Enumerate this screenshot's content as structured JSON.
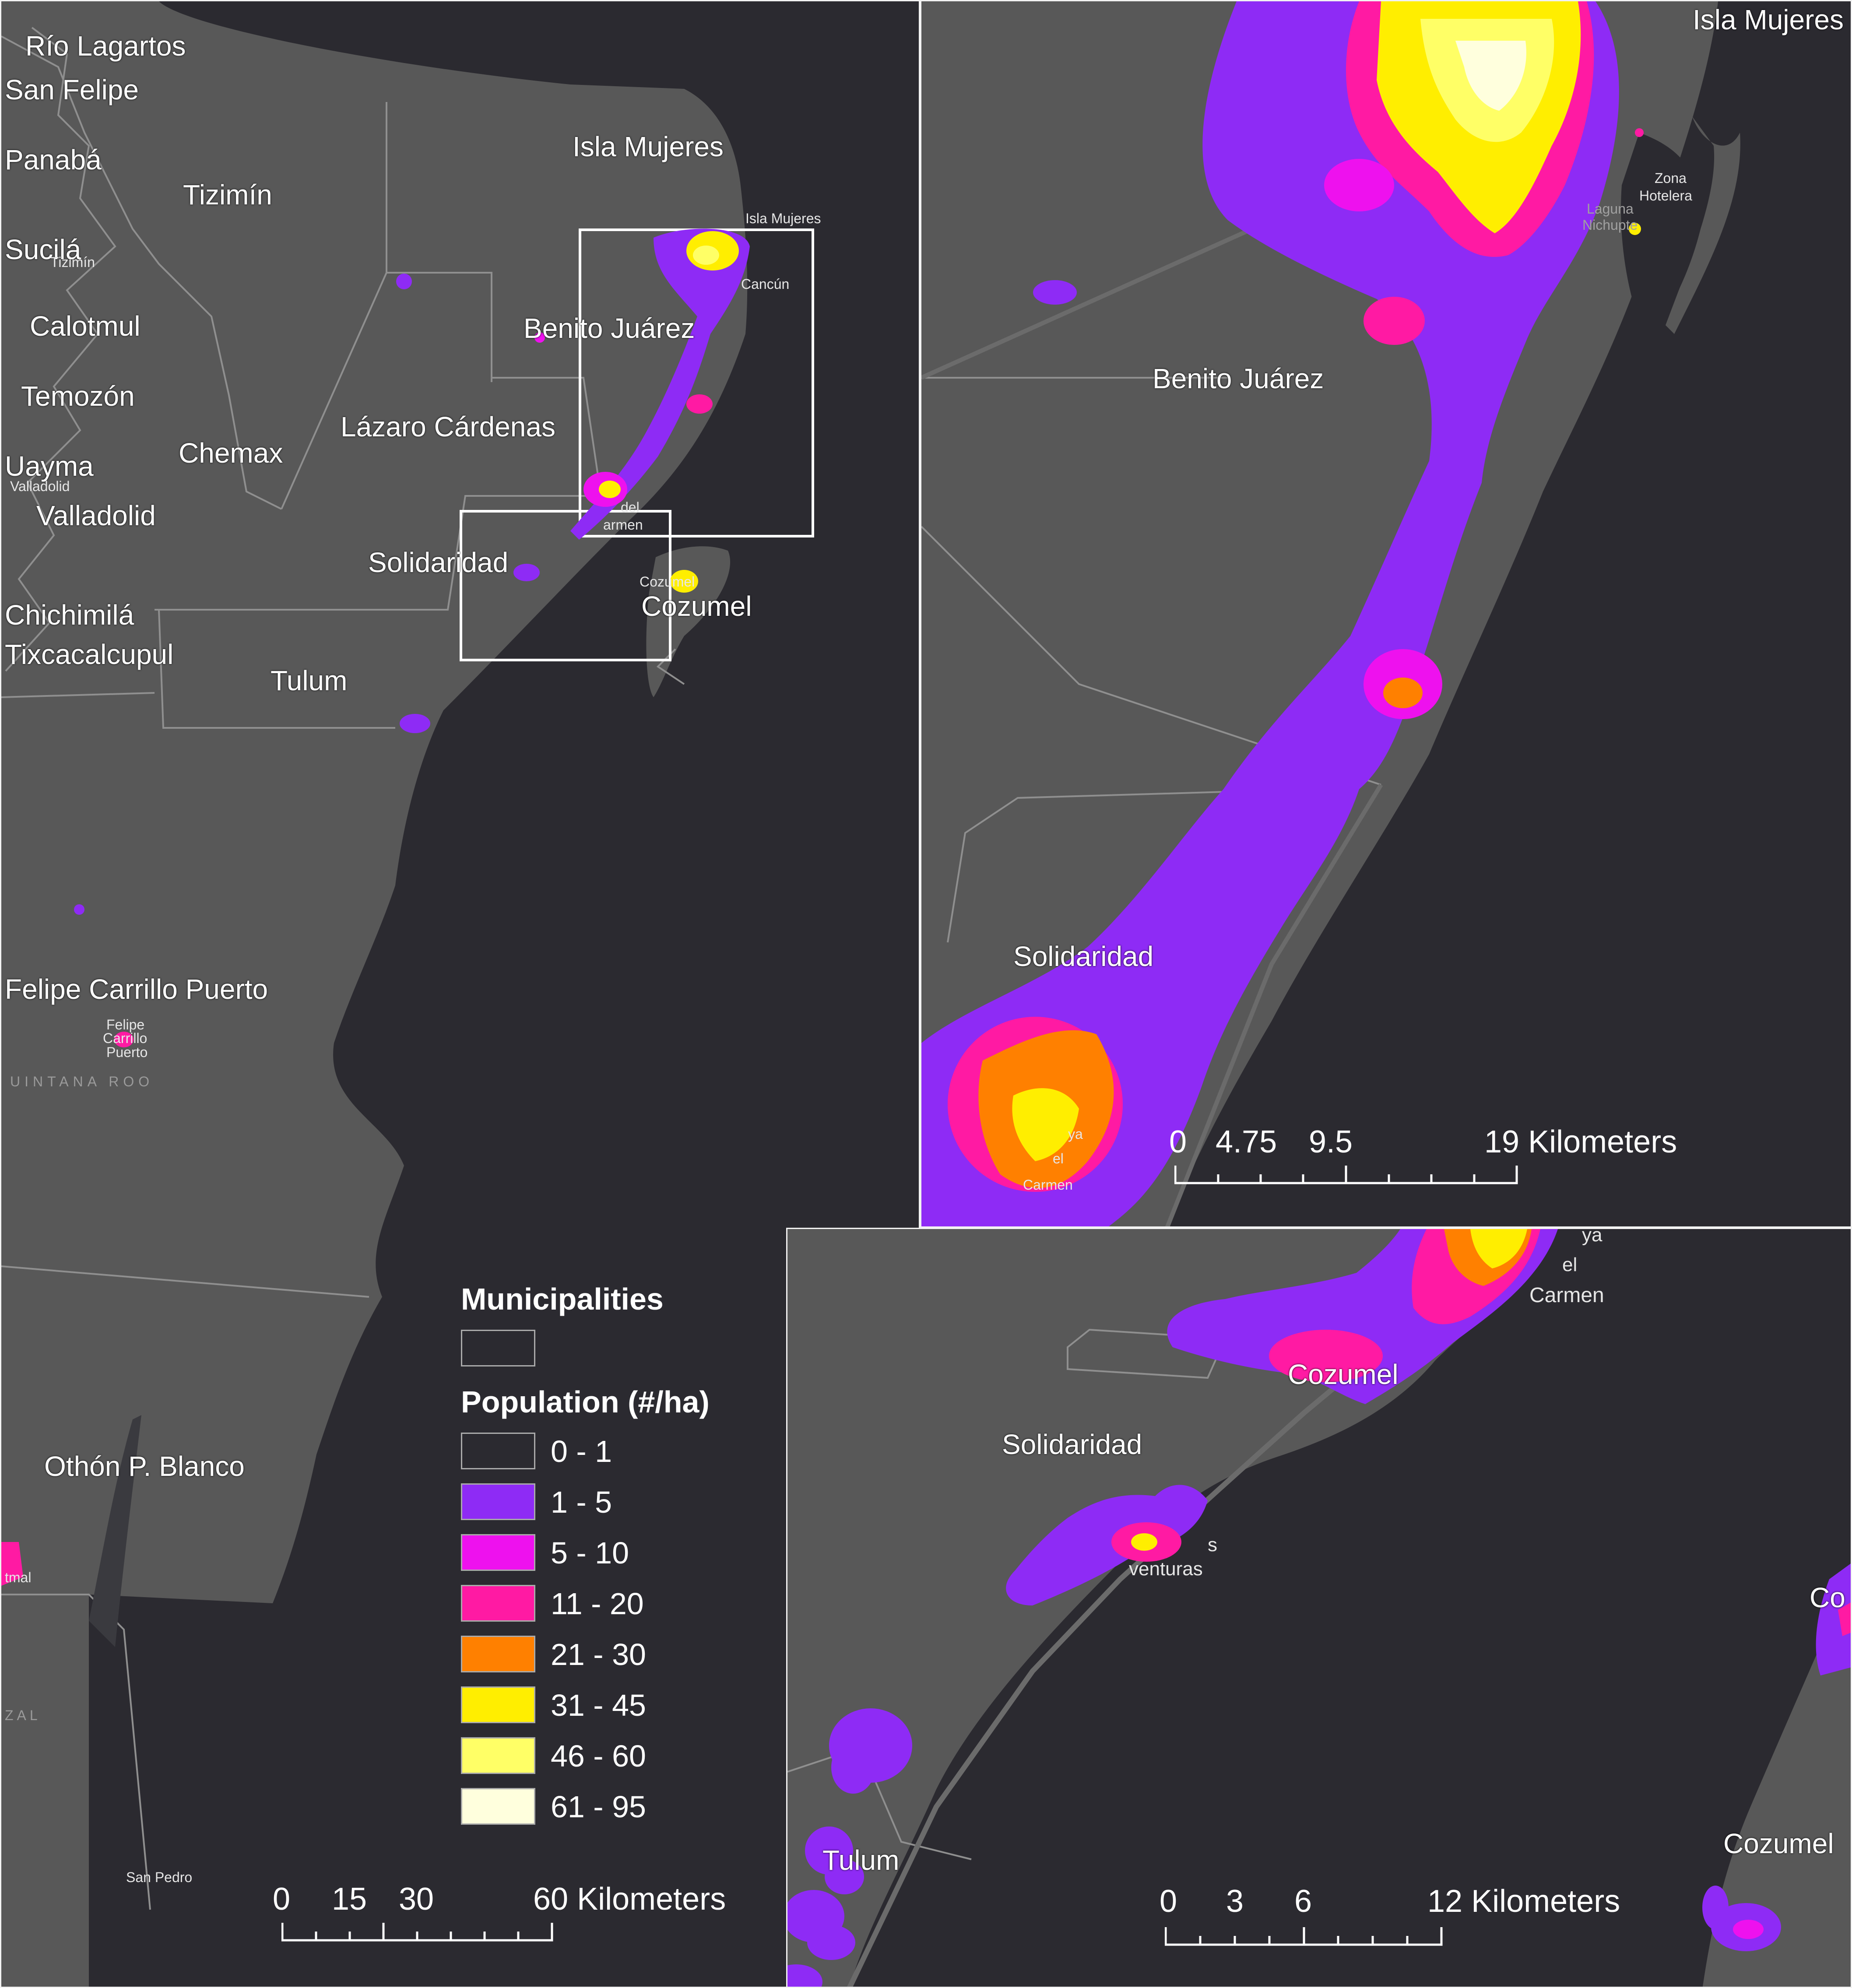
{
  "colors": {
    "ocean": "#2b2a30",
    "land": "#585858",
    "land_dark": "#4a4a4a",
    "boundary": "#8f8f8f",
    "inset_box": "#ffffff",
    "pop_0_1": "#2b2a30",
    "pop_1_5": "#8e2bf5",
    "pop_5_10": "#ee11ee",
    "pop_11_20": "#ff1aa3",
    "pop_21_30": "#ff8000",
    "pop_31_45": "#ffee00",
    "pop_46_60": "#ffff66",
    "pop_61_95": "#ffffdd"
  },
  "main_map": {
    "labels": {
      "rio_lagartos": "Río Lagartos",
      "san_felipe": "San Felipe",
      "panaba": "Panabá",
      "tizimin": "Tizimín",
      "tizimin_small": "Tizimín",
      "sucila": "Sucilá",
      "calotmul": "Calotmul",
      "temozon": "Temozón",
      "chemax": "Chemax",
      "uayma": "Uayma",
      "valladolid_small": "Valladolid",
      "valladolid": "Valladolid",
      "chichimila": "Chichimilá",
      "tixcacalcupul": "Tixcacalcupul",
      "isla_mujeres": "Isla Mujeres",
      "isla_mujeres_small": "Isla Mujeres",
      "cancun_small": "Cancún",
      "benito_juarez": "Benito Juárez",
      "lazaro_cardenas": "Lázaro Cárdenas",
      "solidaridad": "Solidaridad",
      "playa_small": "del",
      "playa_small2": "armen",
      "cozumel": "Cozumel",
      "cozumel_small": "Cozumel",
      "tulum": "Tulum",
      "felipe_carrillo_puerto": "Felipe Carrillo Puerto",
      "fcp_small1": "Felipe",
      "fcp_small2": "Carrillo",
      "fcp_small3": "Puerto",
      "quintana_roo": "UINTANA ROO",
      "othon_p_blanco": "Othón P. Blanco",
      "chetumal_small": "tmal",
      "zal_small": "ZAL",
      "san_pedro": "San Pedro"
    },
    "scale_bar": {
      "ticks": [
        "0",
        "15",
        "30",
        "60 Kilometers"
      ]
    }
  },
  "legend": {
    "municipalities_title": "Municipalities",
    "population_title": "Population (#/ha)",
    "classes": [
      {
        "label": "0 - 1",
        "color": "#2b2a30"
      },
      {
        "label": "1 - 5",
        "color": "#8e2bf5"
      },
      {
        "label": "5 - 10",
        "color": "#ee11ee"
      },
      {
        "label": "11 - 20",
        "color": "#ff1aa3"
      },
      {
        "label": "21 - 30",
        "color": "#ff8000"
      },
      {
        "label": "31 - 45",
        "color": "#ffee00"
      },
      {
        "label": "46 - 60",
        "color": "#ffff66"
      },
      {
        "label": "61 - 95",
        "color": "#ffffdd"
      }
    ]
  },
  "north_inset": {
    "labels": {
      "isla_mujeres": "Isla Mujeres",
      "benito_juarez": "Benito Juárez",
      "solidaridad": "Solidaridad",
      "zona": "Zona",
      "hotelera": "Hotelera",
      "laguna": "Laguna",
      "nichupte": "Nichupte",
      "playa_ya": "ya",
      "playa_el": "el",
      "carmen": "Carmen"
    },
    "scale_bar": {
      "ticks": [
        "0",
        "4.75",
        "9.5",
        "19 Kilometers"
      ]
    }
  },
  "south_inset": {
    "labels": {
      "playa_ya": "ya",
      "playa_el": "el",
      "carmen": "Carmen",
      "cozumel_box": "Cozumel",
      "solidaridad": "Solidaridad",
      "aventuras_s": "s",
      "aventuras": "venturas",
      "tulum": "Tulum",
      "co": "Co",
      "cozumel": "Cozumel"
    },
    "scale_bar": {
      "ticks": [
        "0",
        "3",
        "6",
        "12 Kilometers"
      ]
    }
  }
}
